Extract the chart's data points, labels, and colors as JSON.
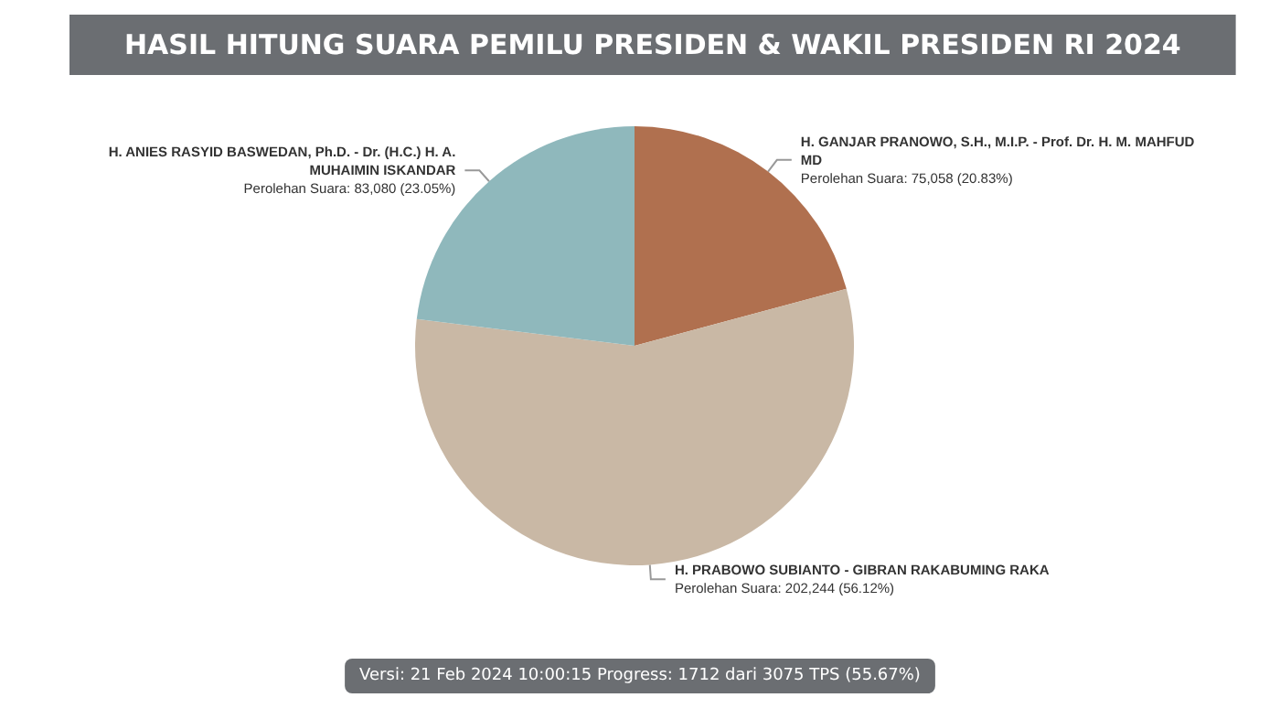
{
  "chart_data": {
    "type": "pie",
    "title": "HASIL HITUNG SUARA PEMILU PRESIDEN & WAKIL PRESIDEN RI 2024",
    "categories": [
      "H. GANJAR PRANOWO, S.H., M.I.P. - Prof. Dr. H. M. MAHFUD MD",
      "H. PRABOWO SUBIANTO - GIBRAN RAKABUMING RAKA",
      "H. ANIES RASYID BASWEDAN, Ph.D. - Dr. (H.C.) H. A. MUHAIMIN ISKANDAR"
    ],
    "values": [
      75058,
      202244,
      83080
    ],
    "colors": [
      "#b0704f",
      "#c9b8a5",
      "#8fb8bc"
    ],
    "value_labels": [
      "Perolehan Suara: 75,058 (20.83%)",
      "Perolehan Suara: 202,244 (56.12%)",
      "Perolehan Suara: 83,080 (23.05%)"
    ],
    "annotations": [
      "Versi: 21 Feb 2024 10:00:15 Progress: 1712 dari 3075 TPS (55.67%)"
    ]
  }
}
